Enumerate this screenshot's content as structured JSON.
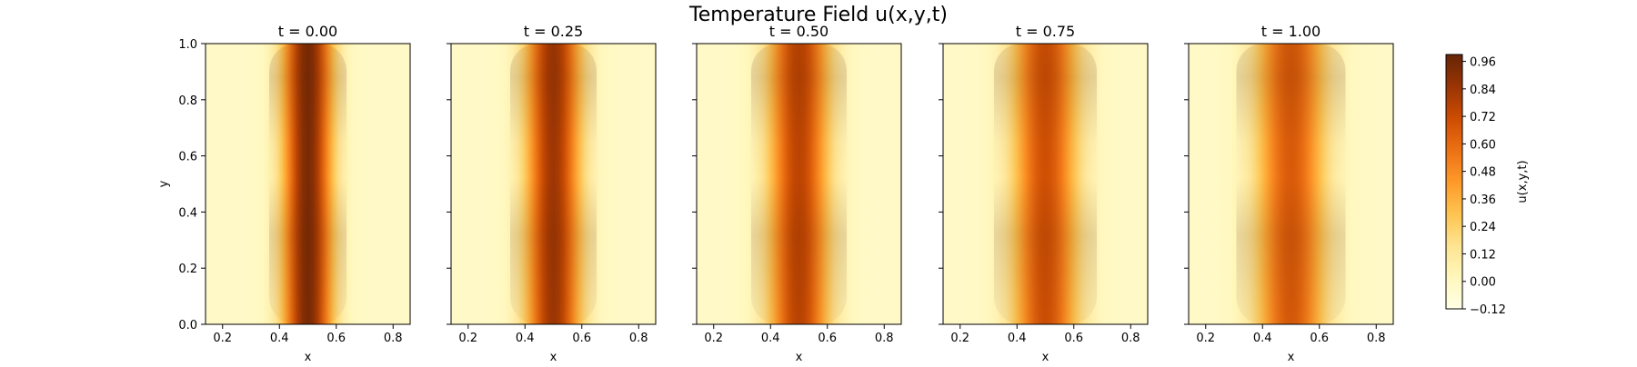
{
  "chart_data": {
    "type": "heatmap",
    "title": "Temperature Field u(x,y,t)",
    "xlabel": "x",
    "ylabel": "y",
    "xlim": [
      0.14,
      0.86
    ],
    "ylim": [
      0.0,
      1.0
    ],
    "x_ticks": [
      "0.2",
      "0.4",
      "0.6",
      "0.8"
    ],
    "y_ticks": [
      "0.0",
      "0.2",
      "0.4",
      "0.6",
      "0.8",
      "1.0"
    ],
    "x_tick_values": [
      0.2,
      0.4,
      0.6,
      0.8
    ],
    "y_tick_values": [
      0.0,
      0.2,
      0.4,
      0.6,
      0.8,
      1.0
    ],
    "colormap": "YlOrBr",
    "panels": [
      {
        "label": "t = 0.00",
        "t": 0.0,
        "peak": 0.96,
        "width": 0.085
      },
      {
        "label": "t = 0.25",
        "t": 0.25,
        "peak": 0.86,
        "width": 0.095
      },
      {
        "label": "t = 0.50",
        "t": 0.5,
        "peak": 0.78,
        "width": 0.105
      },
      {
        "label": "t = 0.75",
        "t": 0.75,
        "peak": 0.72,
        "width": 0.113
      },
      {
        "label": "t = 1.00",
        "t": 1.0,
        "peak": 0.68,
        "width": 0.12
      }
    ],
    "colorbar": {
      "label": "u(x,y,t)",
      "min": -0.12,
      "max": 0.99,
      "ticks": [
        "0.96",
        "0.84",
        "0.72",
        "0.60",
        "0.48",
        "0.36",
        "0.24",
        "0.12",
        "0.00",
        "−0.12"
      ],
      "tick_values": [
        0.96,
        0.84,
        0.72,
        0.6,
        0.48,
        0.36,
        0.24,
        0.12,
        0.0,
        -0.12
      ]
    },
    "grid": false
  }
}
